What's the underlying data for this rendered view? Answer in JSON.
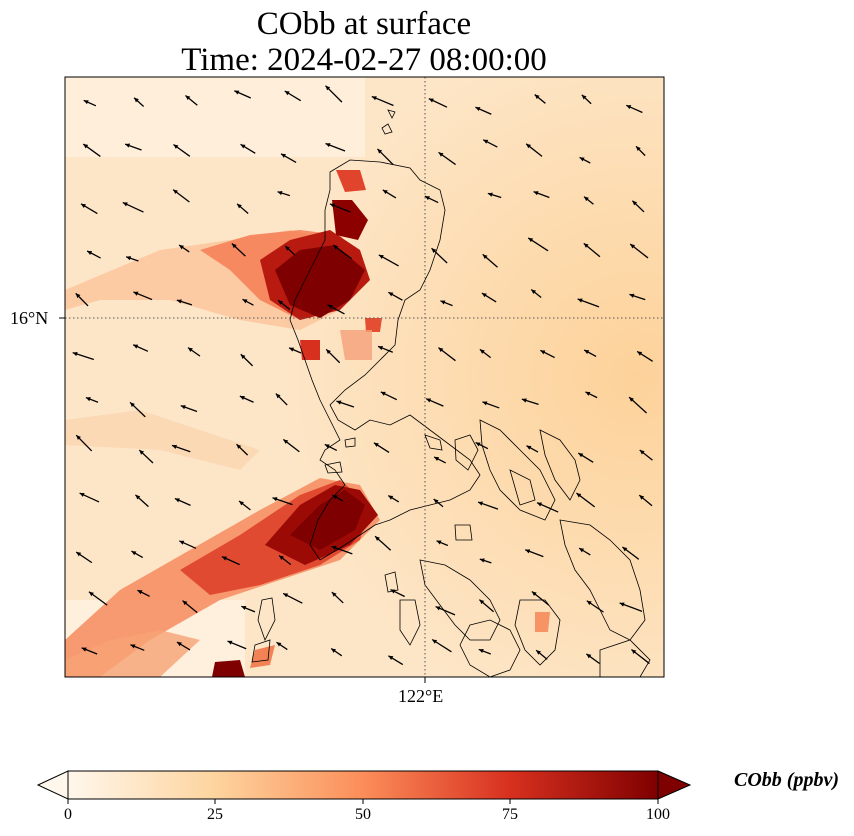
{
  "title": {
    "line1": "CObb at surface",
    "line2": "Time: 2024-02-27 08:00:00"
  },
  "axes": {
    "lat_tick_label": "16°N",
    "lon_tick_label": "122°E",
    "gridlines": "dotted"
  },
  "colorbar": {
    "label": "CObb (ppbv)",
    "ticks": [
      "0",
      "25",
      "50",
      "75",
      "100"
    ],
    "min": 0,
    "max": 100,
    "extend": "both",
    "colormap": "OrRd",
    "stops": [
      "#fff7ec",
      "#fdd49e",
      "#fc8d59",
      "#d7301f",
      "#7f0000"
    ]
  },
  "colors": {
    "background_field": "#fde3c0",
    "coastline": "#000000",
    "wind_arrows": "#000000"
  },
  "layers": [
    "CObb concentration field",
    "coastlines",
    "wind vectors"
  ]
}
